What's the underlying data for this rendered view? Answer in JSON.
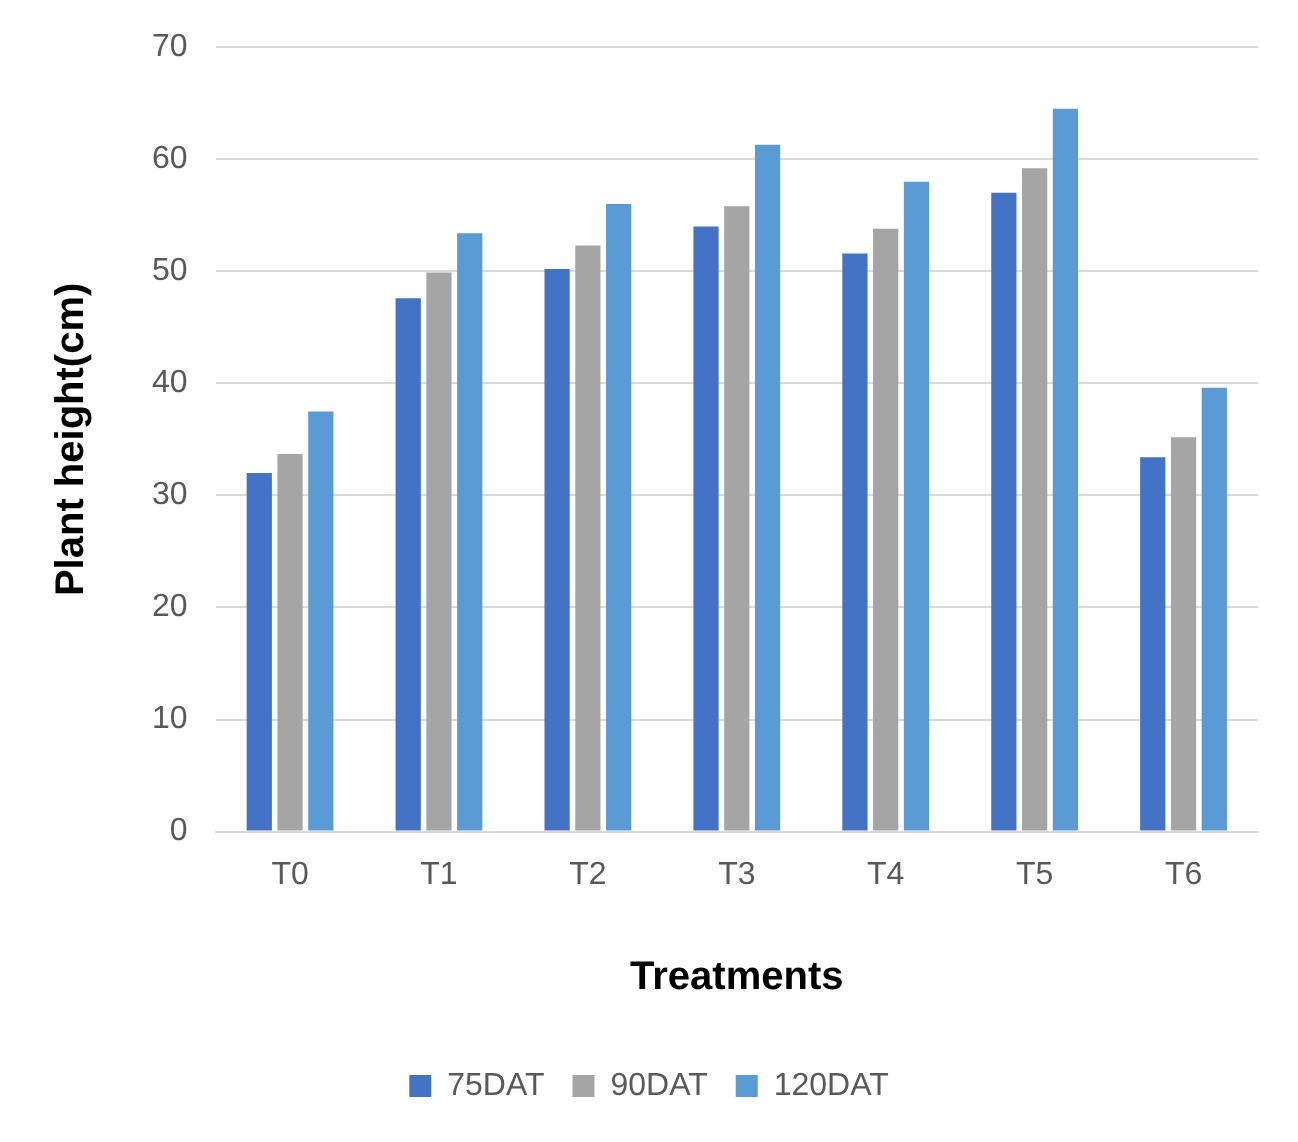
{
  "chart_data": {
    "type": "bar",
    "xlabel": "Treatments",
    "ylabel": "Plant height(cm)",
    "categories": [
      "T0",
      "T1",
      "T2",
      "T3",
      "T4",
      "T5",
      "T6"
    ],
    "series": [
      {
        "name": "75DAT",
        "color": "#4472c4",
        "values": [
          32,
          47.6,
          50.2,
          54,
          51.6,
          57,
          33.4
        ]
      },
      {
        "name": "90DAT",
        "color": "#a5a5a5",
        "values": [
          33.7,
          49.9,
          52.3,
          55.8,
          53.8,
          59.2,
          35.2
        ]
      },
      {
        "name": "120DAT",
        "color": "#5b9bd5",
        "values": [
          37.5,
          53.4,
          56,
          61.3,
          58,
          64.5,
          39.6
        ]
      }
    ],
    "ylim": [
      0,
      70
    ],
    "yticks": [
      0,
      10,
      20,
      30,
      40,
      50,
      60,
      70
    ],
    "grid": "y",
    "legend": "bottom"
  }
}
